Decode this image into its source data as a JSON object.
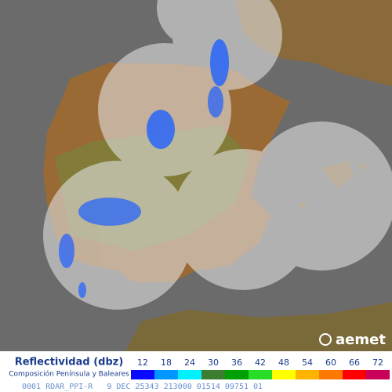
{
  "legend": {
    "title": "Reflectividad (dbz)",
    "subtitle": "Composición Península y Baleares",
    "scale": [
      {
        "value": 12,
        "color": "#0a0aff"
      },
      {
        "value": 18,
        "color": "#0096ff"
      },
      {
        "value": 24,
        "color": "#00f0ff"
      },
      {
        "value": 30,
        "color": "#3c7d32"
      },
      {
        "value": 36,
        "color": "#00a000"
      },
      {
        "value": 42,
        "color": "#28dc28"
      },
      {
        "value": 48,
        "color": "#ffff00"
      },
      {
        "value": 54,
        "color": "#ffb400"
      },
      {
        "value": 60,
        "color": "#ff7800"
      },
      {
        "value": 66,
        "color": "#ff0000"
      },
      {
        "value": 72,
        "color": "#c8005a"
      }
    ]
  },
  "logo": "aemet",
  "footer": "0001 RDAR_PPI-R   9 DEC 25343 213000 01514 09751 01"
}
